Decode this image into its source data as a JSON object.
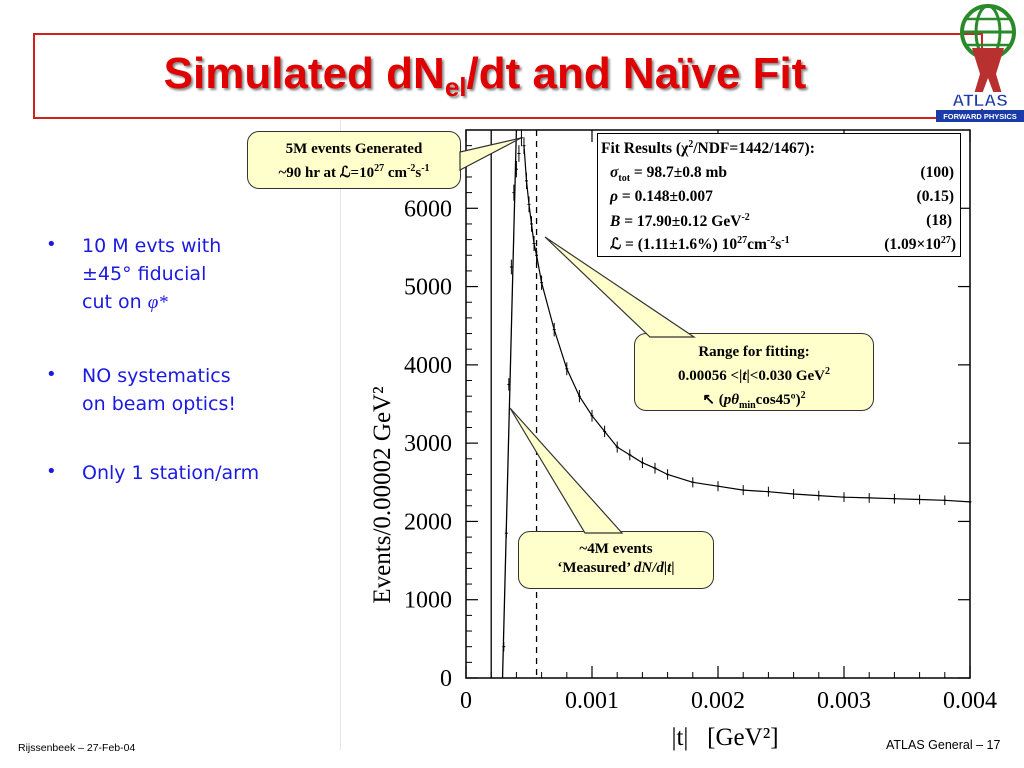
{
  "slide": {
    "title_main": "Simulated dN",
    "title_sub": "el",
    "title_rest": "/dt and Naïve Fit",
    "logo_text": "ATLAS",
    "logo_subtext": "FORWARD PHYSICS",
    "footer_left": "Rijssenbeek – 27-Feb-04",
    "footer_right": "ATLAS General – 17"
  },
  "bullets": [
    {
      "line1": "10 M evts with",
      "line2": "±45° fiducial",
      "line3_pre": "cut on ",
      "line3_sym": "φ*"
    },
    {
      "line1": "NO systematics",
      "line2": "on beam optics!"
    },
    {
      "line1": "Only 1 station/arm"
    }
  ],
  "callouts": {
    "generated_line1": "5M events Generated",
    "generated_line2_pre": "~90 hr at ℒ=10",
    "generated_exp1": "27",
    "generated_unit": " cm",
    "generated_exp2": "-2",
    "generated_s": "s",
    "generated_exp3": "-1",
    "range_line1": "Range for fitting:",
    "range_line2_pre": "0.00056 <|",
    "range_line2_t": "t",
    "range_line2_post": "|<0.030 GeV",
    "range_line2_exp": "2",
    "range_line3_pre": "↖ (",
    "range_line3_p": "pθ",
    "range_line3_sub": "min",
    "range_line3_post": "cos45º)",
    "range_line3_exp": "2",
    "measured_line1": "~4M events",
    "measured_line2_pre": "‘Measured’ ",
    "measured_line2_it": "dN/d",
    "measured_line2_t": "|t|"
  },
  "fit_results": {
    "header_pre": "Fit Results (χ",
    "header_exp": "2",
    "header_post": "/NDF=1442/1467):",
    "row1_sym": "σ",
    "row1_sub": "tot",
    "row1_val": " = 98.7±0.8 mb",
    "row1_ref": "(100)",
    "row2_sym": "ρ",
    "row2_val": " = 0.148±0.007",
    "row2_ref": "(0.15)",
    "row3_sym": "B",
    "row3_val": " = 17.90±0.12 GeV",
    "row3_exp": "-2",
    "row3_ref": "(18)",
    "row4_sym": "ℒ",
    "row4_val": " =  (1.11±1.6%) 10",
    "row4_exp1": "27",
    "row4_unit": "cm",
    "row4_exp2": "-2",
    "row4_s": "s",
    "row4_exp3": "-1",
    "row4_ref_pre": "(1.09×10",
    "row4_ref_exp": "27",
    "row4_ref_post": ")"
  },
  "chart_data": {
    "type": "scatter",
    "title": "",
    "xlabel": "|t|   [GeV²]",
    "ylabel": "Events/0.00002 GeV²",
    "xlim": [
      0,
      0.004
    ],
    "ylim": [
      0,
      7000
    ],
    "xticks": [
      0,
      0.001,
      0.002,
      0.003,
      0.004
    ],
    "xtick_labels": [
      "0",
      "0.001",
      "0.002",
      "0.003",
      "0.004"
    ],
    "yticks": [
      0,
      1000,
      2000,
      3000,
      4000,
      5000,
      6000
    ],
    "ytick_labels": [
      "0",
      "1000",
      "2000",
      "3000",
      "4000",
      "5000",
      "6000"
    ],
    "fit_range_marker_x": 0.00056,
    "acceptance_edge_x": 0.0002,
    "series": [
      {
        "x": [
          0.0003,
          0.00032,
          0.00034,
          0.00036,
          0.00038,
          0.0004,
          0.00042,
          0.00044,
          0.00046,
          0.00048,
          0.0005,
          0.00052,
          0.00054,
          0.00056,
          0.0006,
          0.0007,
          0.0008,
          0.0009,
          0.001,
          0.0011,
          0.0012,
          0.0013,
          0.0014,
          0.0015,
          0.0016,
          0.0018,
          0.002,
          0.0022,
          0.0024,
          0.0026,
          0.0028,
          0.003,
          0.0032,
          0.0034,
          0.0036,
          0.0038,
          0.004
        ],
        "y": [
          400,
          1850,
          3750,
          5250,
          6200,
          6500,
          6700,
          6900,
          6800,
          6350,
          6050,
          5800,
          5550,
          5400,
          5050,
          4450,
          3950,
          3600,
          3350,
          3150,
          2950,
          2850,
          2750,
          2680,
          2600,
          2500,
          2450,
          2400,
          2380,
          2350,
          2330,
          2310,
          2300,
          2290,
          2280,
          2270,
          2250
        ]
      }
    ]
  }
}
